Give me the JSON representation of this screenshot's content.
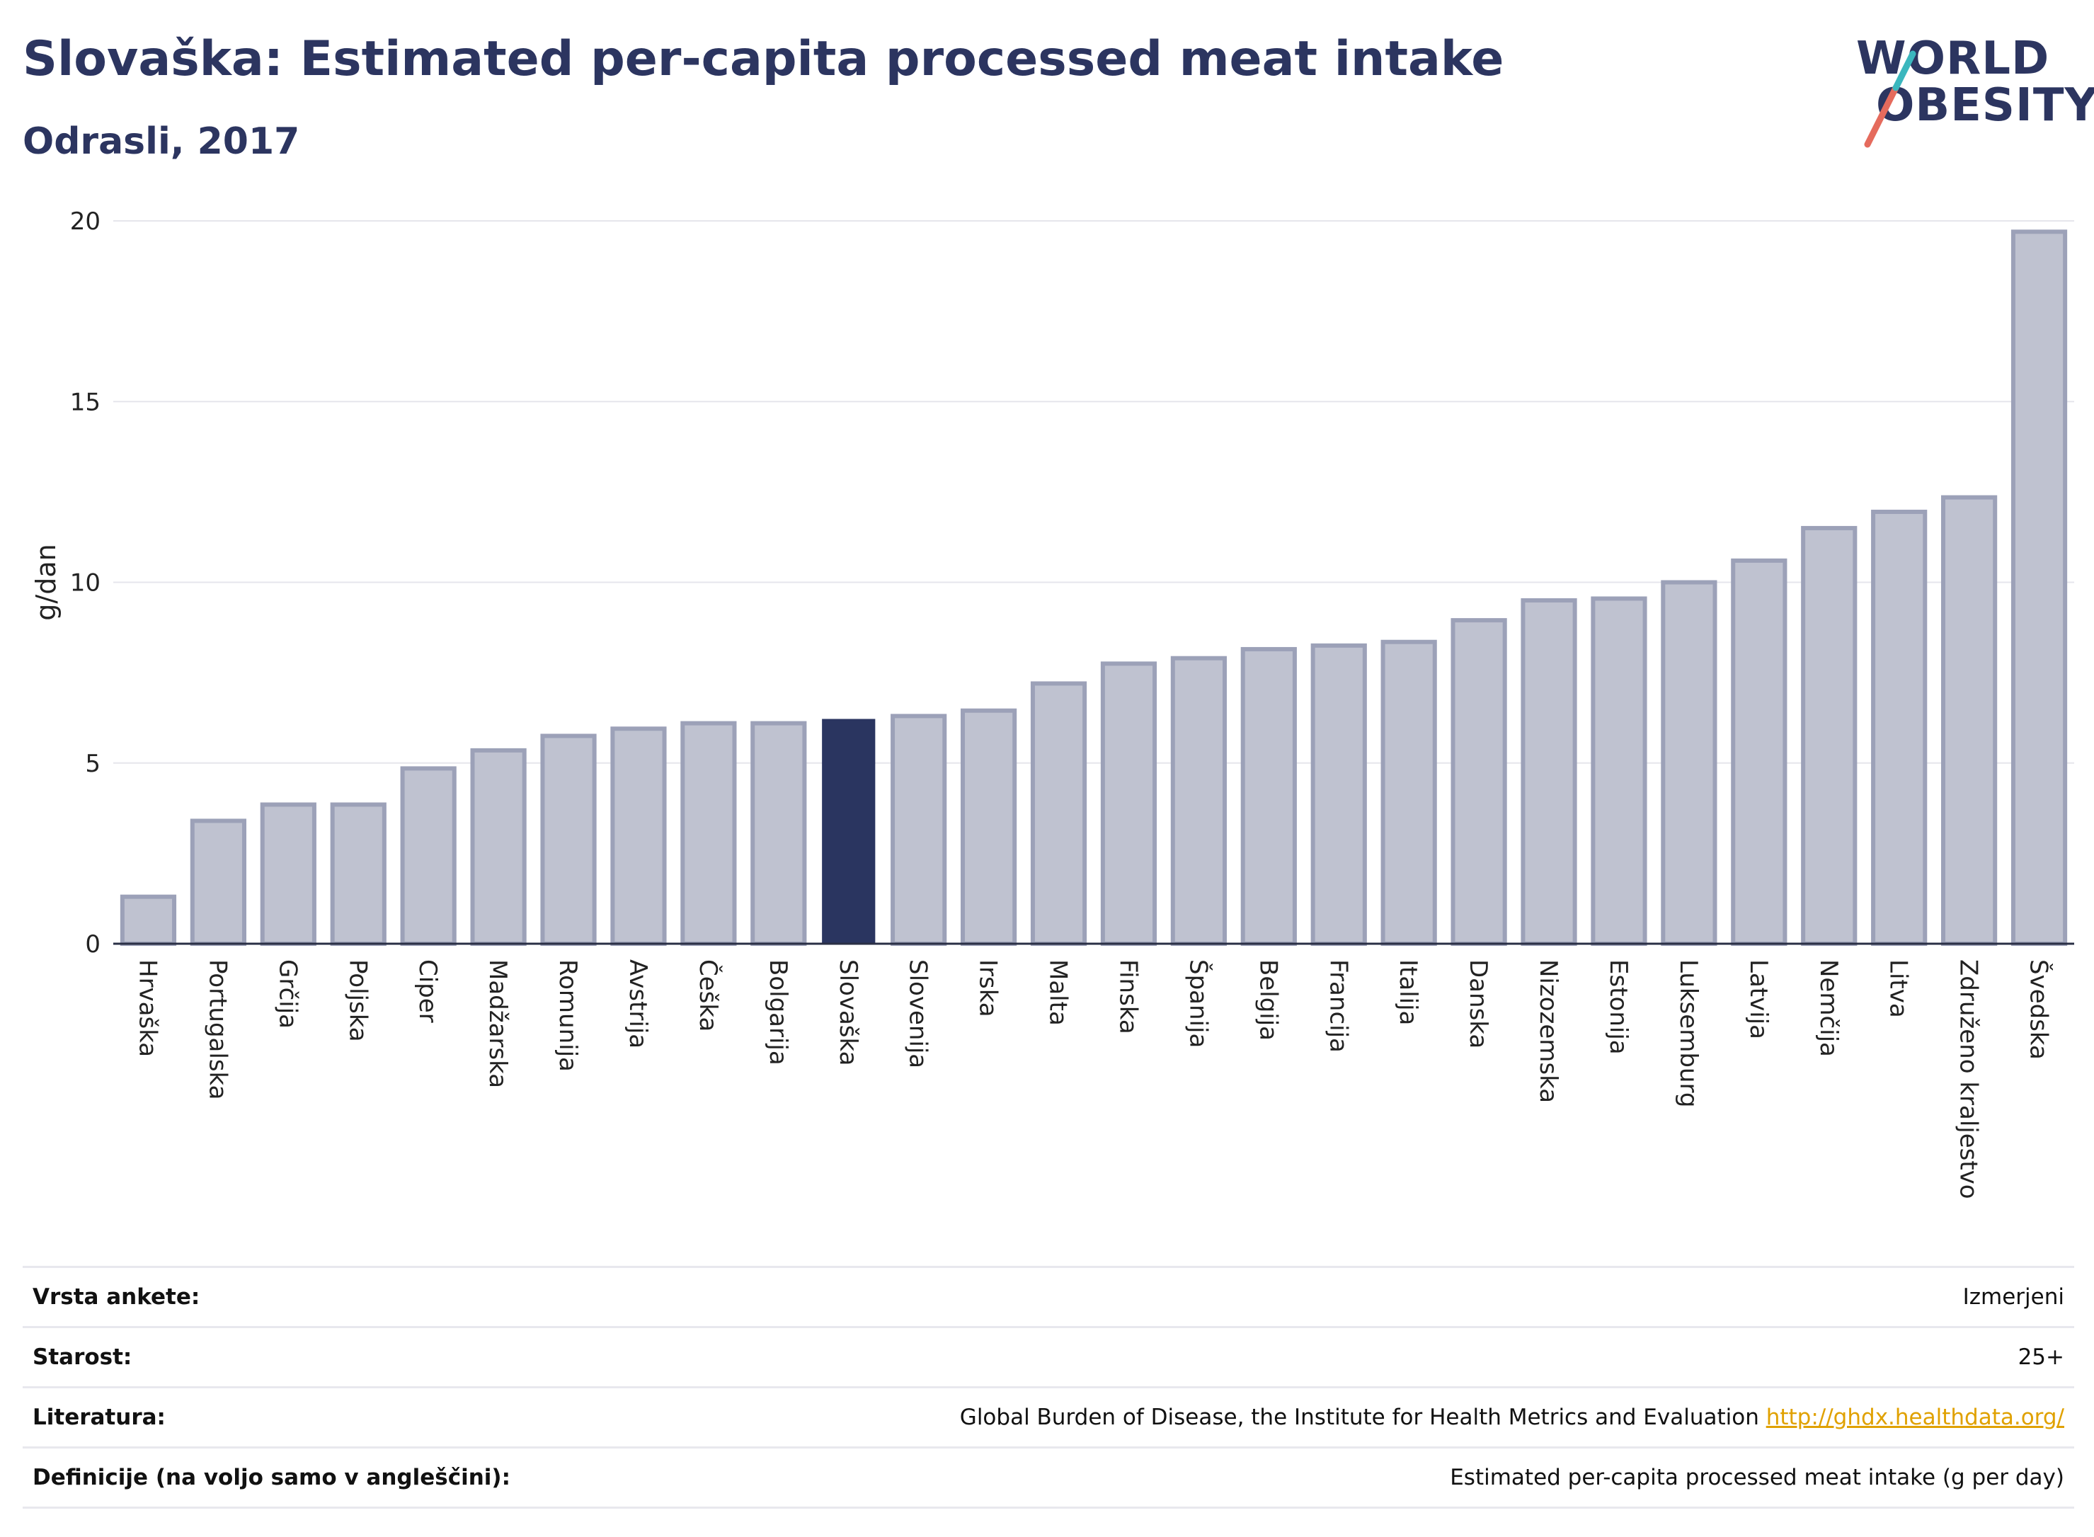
{
  "header": {
    "title": "Slovaška: Estimated per-capita processed meat intake",
    "subtitle": "Odrasli, 2017",
    "logo_line1": "WORLD",
    "logo_line2": "OBESITY"
  },
  "colors": {
    "title": "#2c3560",
    "bar": "#bfc2d0",
    "bar_stroke": "#9ca1b8",
    "highlight": "#2a3560",
    "logo_red": "#e56b5d",
    "logo_teal": "#3bb7be"
  },
  "chart_data": {
    "type": "bar",
    "title": "Slovaška: Estimated per-capita processed meat intake",
    "subtitle": "Odrasli, 2017",
    "xlabel": "",
    "ylabel": "g/dan",
    "ylim": [
      0,
      20
    ],
    "yticks": [
      0,
      5,
      10,
      15,
      20
    ],
    "grid": true,
    "highlight": "Slovaška",
    "categories": [
      "Hrvaška",
      "Portugalska",
      "Grčija",
      "Poljska",
      "Ciper",
      "Madžarska",
      "Romunija",
      "Avstrija",
      "Češka",
      "Bolgarija",
      "Slovaška",
      "Slovenija",
      "Irska",
      "Malta",
      "Finska",
      "Španija",
      "Belgija",
      "Francija",
      "Italija",
      "Danska",
      "Nizozemska",
      "Estonija",
      "Luksemburg",
      "Latvija",
      "Nemčija",
      "Litva",
      "Združeno kraljestvo",
      "Švedska"
    ],
    "values": [
      1.3,
      3.4,
      3.85,
      3.85,
      4.85,
      5.35,
      5.75,
      5.95,
      6.1,
      6.1,
      6.2,
      6.3,
      6.45,
      7.2,
      7.75,
      7.9,
      8.15,
      8.25,
      8.35,
      8.95,
      9.5,
      9.55,
      10.0,
      10.6,
      11.5,
      11.95,
      12.35,
      19.7
    ]
  },
  "info": {
    "rows": [
      {
        "label": "Vrsta ankete:",
        "value": "Izmerjeni",
        "link": ""
      },
      {
        "label": "Starost:",
        "value": "25+",
        "link": ""
      },
      {
        "label": "Literatura:",
        "value": "Global Burden of Disease, the Institute for Health Metrics and Evaluation",
        "link": "http://ghdx.healthdata.org/"
      },
      {
        "label": "Definicije (na voljo samo v angleščini):",
        "value": "Estimated per-capita processed meat intake (g per day)",
        "link": ""
      }
    ]
  }
}
